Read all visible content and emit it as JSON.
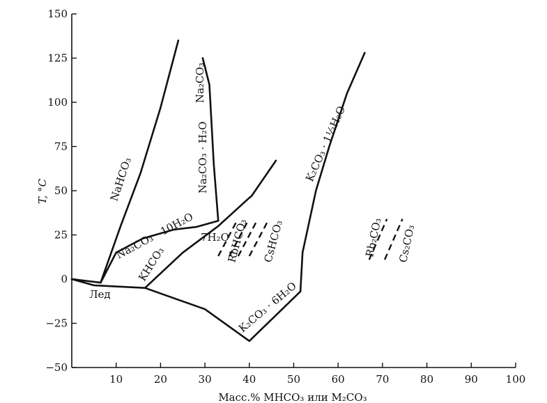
{
  "chart_data": {
    "type": "line",
    "title": "",
    "xlabel": "Масс.% MHCO₃ или M₂CO₃",
    "ylabel": "T, °C",
    "xlim": [
      0,
      100
    ],
    "ylim": [
      -50,
      150
    ],
    "xticks": [
      "10",
      "20",
      "30",
      "40",
      "50",
      "60",
      "70",
      "80",
      "90",
      "100"
    ],
    "yticks": [
      "150",
      "125",
      "100",
      "75",
      "50",
      "25",
      "0",
      "−25",
      "−50"
    ],
    "grid": false,
    "series": [
      {
        "points": [
          [
            0,
            0
          ],
          [
            5,
            -3.5
          ],
          [
            16.5,
            -5
          ],
          [
            30,
            -17
          ],
          [
            40,
            -35
          ],
          [
            51.5,
            -7
          ]
        ]
      },
      {
        "points": [
          [
            0,
            0
          ],
          [
            6.5,
            -2
          ]
        ]
      },
      {
        "points": [
          [
            6.5,
            -2
          ],
          [
            11,
            30
          ],
          [
            15.5,
            60
          ],
          [
            20,
            97
          ],
          [
            24,
            135
          ]
        ]
      },
      {
        "points": [
          [
            6.5,
            -2
          ],
          [
            10,
            15
          ],
          [
            16,
            23
          ],
          [
            23,
            28
          ],
          [
            28,
            29.5
          ],
          [
            33,
            33
          ]
        ]
      },
      {
        "points": [
          [
            33,
            33
          ],
          [
            32,
            65
          ],
          [
            31,
            110
          ],
          [
            29.5,
            125
          ]
        ]
      },
      {
        "points": [
          [
            16.5,
            -5
          ],
          [
            25,
            15
          ],
          [
            33,
            30
          ],
          [
            40,
            46
          ],
          [
            40.5,
            47
          ],
          [
            46,
            67
          ]
        ]
      },
      {
        "points": [
          [
            51.5,
            -7
          ],
          [
            52,
            15
          ],
          [
            55,
            50
          ],
          [
            58,
            75
          ],
          [
            62,
            105
          ],
          [
            66,
            128
          ]
        ]
      }
    ],
    "dashed_segments": [
      [
        [
          33,
          13
        ],
        [
          37,
          32
        ]
      ],
      [
        [
          35.5,
          13
        ],
        [
          39.5,
          32
        ]
      ],
      [
        [
          37.5,
          13
        ],
        [
          41.5,
          32
        ]
      ],
      [
        [
          40,
          13
        ],
        [
          44,
          32
        ]
      ],
      [
        [
          67,
          11
        ],
        [
          71,
          34
        ]
      ],
      [
        [
          70.5,
          11
        ],
        [
          74.5,
          34
        ]
      ]
    ],
    "labels": {
      "ice": "Лед",
      "nahco3": "NaHCO₃",
      "na2co3_10h2o": "Na₂CO₃ · 10H₂O",
      "na2co3_h2o": "Na₂CO₃ · H₂O",
      "na2co3": "Na₂CO₃",
      "h2o_7": "7H₂O",
      "khco3": "KHCO₃",
      "rbhco3": "RbHCO₃",
      "cshco3": "CsHCO₃",
      "k2co3_15h2o": "K₂CO₃ · 1½H₂O",
      "k2co3_6h2o": "K₂CO₃ · 6H₂O",
      "rb2co3": "Rb₂CO₃",
      "cs2co3": "Cs₂CO₃"
    }
  }
}
